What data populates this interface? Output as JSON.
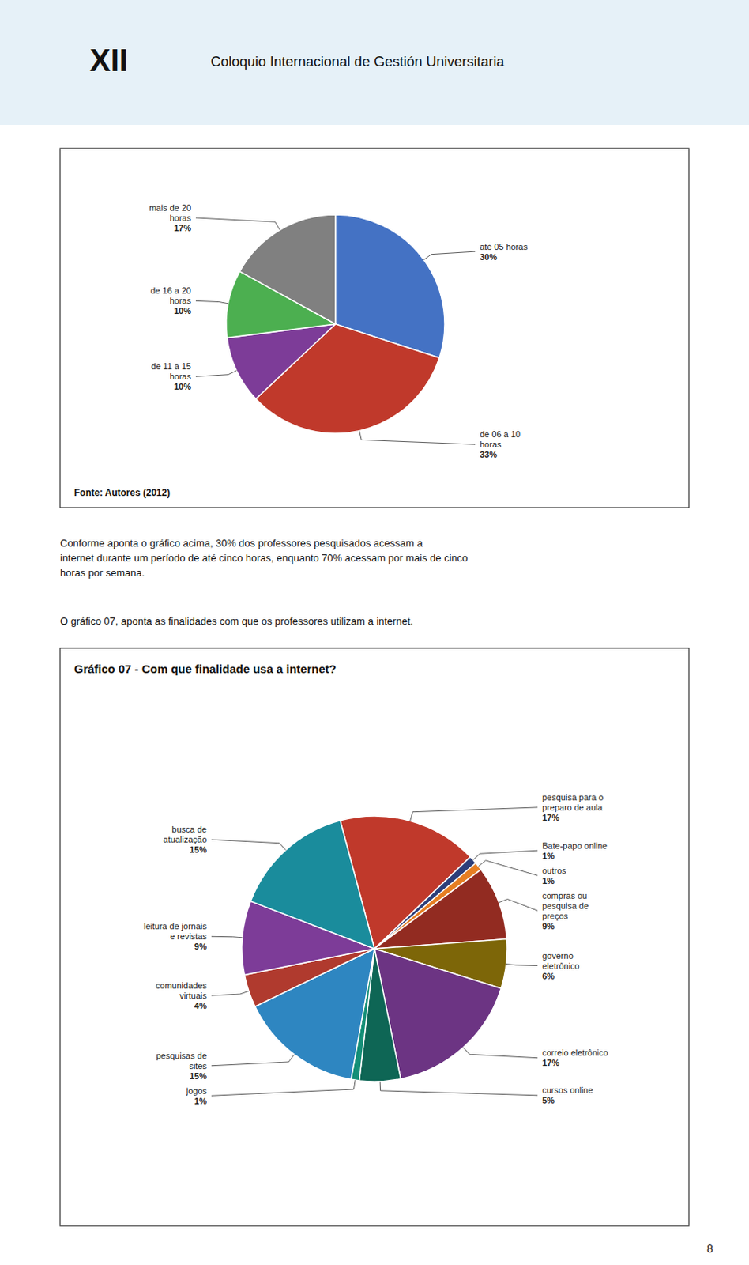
{
  "chart_data": [
    {
      "type": "pie",
      "categories": [
        "até 05 horas",
        "de 06 a 10\nhoras",
        "de 11 a 15\nhoras",
        "de 16 a 20\nhoras",
        "mais de 20\nhoras"
      ],
      "values": [
        30,
        33,
        10,
        10,
        17
      ],
      "value_labels": [
        "30%",
        "33%",
        "10%",
        "10%",
        "17%"
      ],
      "colors": [
        "#4472C4",
        "#C0392B",
        "#7D3C98",
        "#4CAF50",
        "#808080"
      ],
      "data_labels": true,
      "annotations": [
        "XII",
        "Coloquio Internacional de Gestión Universitaria",
        "Fonte: Autores (2012)",
        "Conforme aponta o gráfico acima, 30% dos professores pesquisados acessam a\ninternet durante um período de até cinco horas, enquanto 70% acessam por mais de cinco\nhoras por semana."
      ]
    },
    {
      "type": "pie",
      "title": "Gráfico 07 - Com que finalidade usa a internet?",
      "categories": [
        "pesquisa para o\npreparo de aula",
        "Bate-papo online",
        "outros",
        "compras ou\npesquisa de\npreços",
        "governo\neletrônico",
        "correio eletrônico",
        "cursos online",
        "jogos",
        "pesquisas de\nsites",
        "comunidades\nvirtuais",
        "leitura de jornais\ne revistas",
        "busca de\natualização"
      ],
      "values": [
        17,
        1,
        1,
        9,
        6,
        17,
        5,
        1,
        15,
        4,
        9,
        15
      ],
      "value_labels": [
        "17%",
        "1%",
        "1%",
        "9%",
        "6%",
        "17%",
        "5%",
        "1%",
        "15%",
        "4%",
        "9%",
        "15%"
      ],
      "colors": [
        "#C0392B",
        "#2C3E7A",
        "#E67E22",
        "#922B21",
        "#7D6608",
        "#6C3483",
        "#0E6655",
        "#148F77",
        "#2E86C1",
        "#B03A2E",
        "#7D3C98",
        "#1A8C9C"
      ],
      "data_labels": true,
      "annotations": [
        "O gráfico 07, aponta as finalidades com que os professores utilizam a internet.",
        "8"
      ]
    }
  ]
}
